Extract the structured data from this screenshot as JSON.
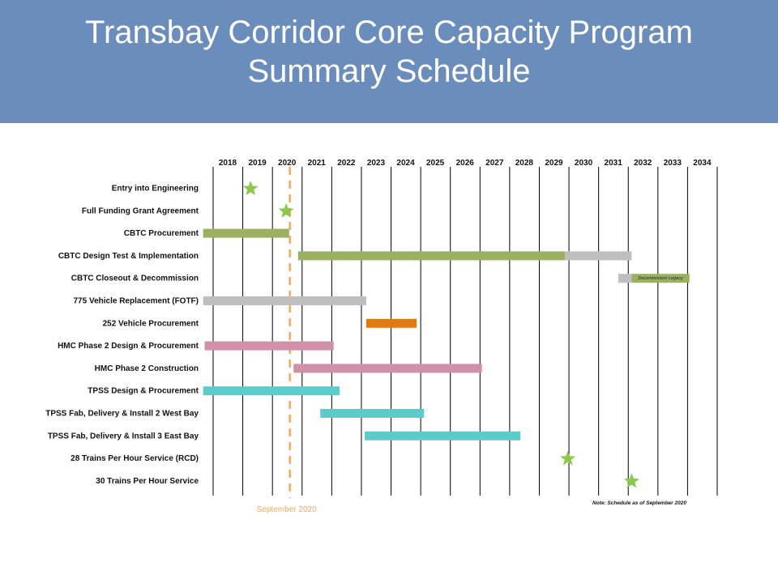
{
  "header": {
    "title_line1": "Transbay Corridor Core Capacity Program",
    "title_line2": "Summary Schedule"
  },
  "chart_data": {
    "type": "gantt",
    "title": "Transbay Corridor Core Capacity Program Summary Schedule",
    "x_ticks": [
      "2018",
      "2019",
      "2020",
      "2021",
      "2022",
      "2023",
      "2024",
      "2025",
      "2026",
      "2027",
      "2028",
      "2029",
      "2030",
      "2031",
      "2032",
      "2033",
      "2034"
    ],
    "xlim": [
      2018,
      2035
    ],
    "grid": "vertical",
    "status_line": {
      "date": 2020.67,
      "label": "September  2020",
      "color": "#f0a95e"
    },
    "note": "Note: Schedule  as of September 2020",
    "colors": {
      "green": "#9bb161",
      "gray": "#bfbfbf",
      "orange": "#e07b10",
      "pink": "#d18fa8",
      "teal": "#5bcbcb",
      "star": "#8cc84b"
    },
    "rows": [
      {
        "label": "Entry into Engineering",
        "milestone": 2019.4
      },
      {
        "label": "Full Funding Grant Agreement",
        "milestone": 2020.6
      },
      {
        "label": "CBTC Procurement",
        "bars": [
          {
            "start": 2017.8,
            "end": 2020.7,
            "color": "green"
          }
        ]
      },
      {
        "label": "CBTC Design Test & Implementation",
        "bars": [
          {
            "start": 2021.0,
            "end": 2030.0,
            "color": "green"
          },
          {
            "start": 2030.0,
            "end": 2032.25,
            "color": "gray"
          }
        ]
      },
      {
        "label": "CBTC Closeout & Decommission",
        "bars": [
          {
            "start": 2031.8,
            "end": 2032.25,
            "color": "gray"
          },
          {
            "start": 2032.25,
            "end": 2034.2,
            "color": "green",
            "text": "Decommission Legacy"
          }
        ]
      },
      {
        "label": "775 Vehicle Replacement (FOTF)",
        "bars": [
          {
            "start": 2017.8,
            "end": 2023.3,
            "color": "gray"
          }
        ]
      },
      {
        "label": "252 Vehicle Procurement",
        "bars": [
          {
            "start": 2023.3,
            "end": 2025.0,
            "color": "orange"
          }
        ]
      },
      {
        "label": "HMC Phase 2 Design & Procurement",
        "bars": [
          {
            "start": 2017.85,
            "end": 2022.2,
            "color": "pink"
          }
        ]
      },
      {
        "label": "HMC Phase 2 Construction",
        "bars": [
          {
            "start": 2020.85,
            "end": 2027.2,
            "color": "pink"
          }
        ]
      },
      {
        "label": "TPSS Design & Procurement",
        "bars": [
          {
            "start": 2017.8,
            "end": 2022.4,
            "color": "teal"
          }
        ]
      },
      {
        "label": "TPSS Fab, Delivery & Install 2 West Bay",
        "bars": [
          {
            "start": 2021.75,
            "end": 2025.25,
            "color": "teal"
          }
        ]
      },
      {
        "label": "TPSS Fab, Delivery & Install 3 East Bay",
        "bars": [
          {
            "start": 2023.25,
            "end": 2028.5,
            "color": "teal"
          }
        ]
      },
      {
        "label": "28 Trains Per Hour Service (RCD)",
        "milestone": 2030.1
      },
      {
        "label": "30 Trains Per Hour Service",
        "milestone": 2032.25
      }
    ]
  }
}
